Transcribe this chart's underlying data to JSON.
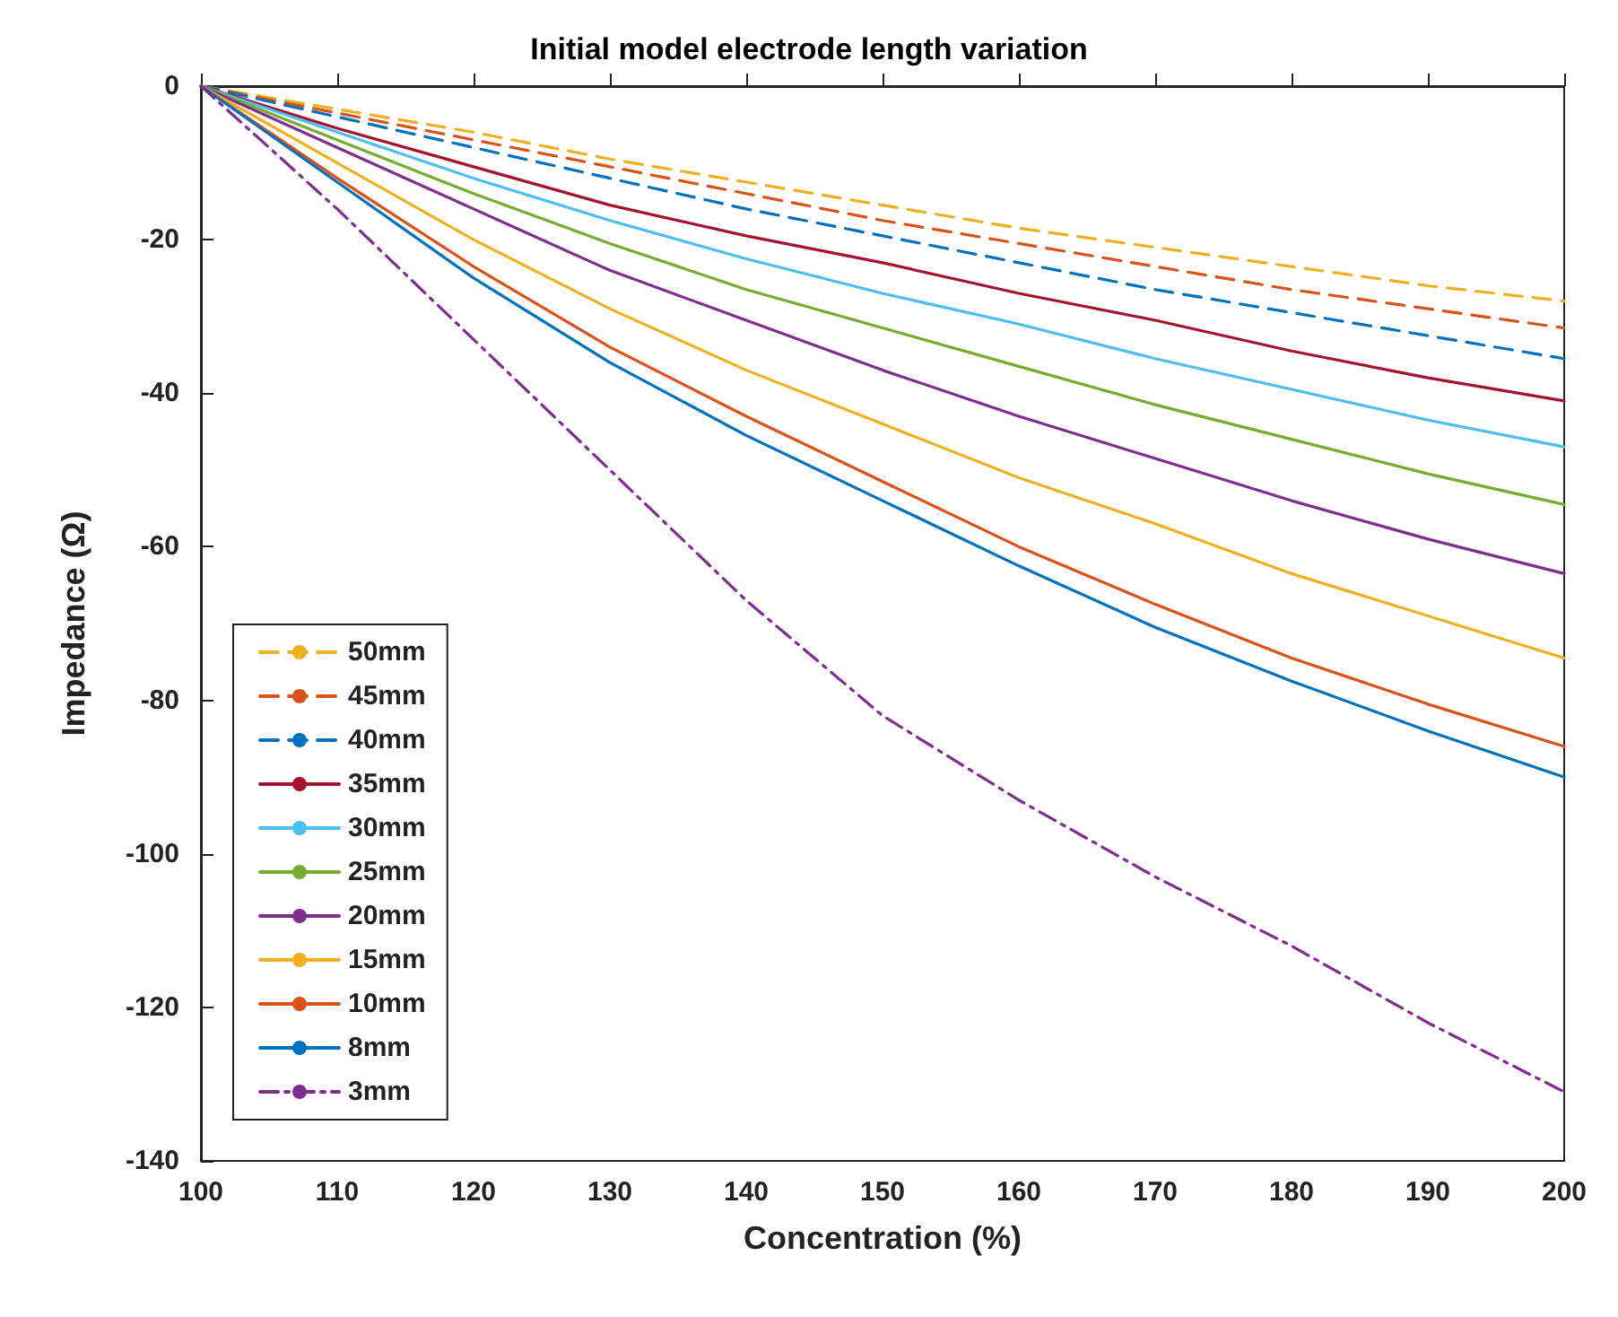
{
  "chart_data": {
    "type": "line",
    "title": "Initial model electrode length variation",
    "xlabel": "Concentration (%)",
    "ylabel": "Impedance (Ω)",
    "x": [
      100,
      110,
      120,
      130,
      140,
      150,
      160,
      170,
      180,
      190,
      200
    ],
    "xlim": [
      100,
      200
    ],
    "xticks": [
      100,
      110,
      120,
      130,
      140,
      150,
      160,
      170,
      180,
      190,
      200
    ],
    "ylim": [
      -140,
      0
    ],
    "yticks": [
      -140,
      -120,
      -100,
      -80,
      -60,
      -40,
      -20,
      0
    ],
    "grid": false,
    "legend": "bottom left",
    "marker": "none",
    "series": [
      {
        "name": "50mm",
        "color": "#edb120",
        "line_style": "dashed",
        "values": [
          0,
          -3,
          -6,
          -9.5,
          -12.5,
          -15.5,
          -18.5,
          -21,
          -23.5,
          -26,
          -28
        ]
      },
      {
        "name": "45mm",
        "color": "#d95319",
        "line_style": "dashed",
        "values": [
          0,
          -3.5,
          -7,
          -10.5,
          -14,
          -17.5,
          -20.5,
          -23.5,
          -26.5,
          -29,
          -31.5
        ]
      },
      {
        "name": "40mm",
        "color": "#0072bd",
        "line_style": "dashed",
        "values": [
          0,
          -4,
          -8,
          -12,
          -16,
          -19.5,
          -23,
          -26.5,
          -29.5,
          -32.5,
          -35.5
        ]
      },
      {
        "name": "35mm",
        "color": "#a2142f",
        "line_style": "solid",
        "values": [
          0,
          -5.5,
          -10.5,
          -15.5,
          -19.5,
          -23,
          -27,
          -30.5,
          -34.5,
          -38,
          -41
        ]
      },
      {
        "name": "30mm",
        "color": "#4dbeee",
        "line_style": "solid",
        "values": [
          0,
          -6,
          -12,
          -17.5,
          -22.5,
          -27,
          -31,
          -35.5,
          -39.5,
          -43.5,
          -47
        ]
      },
      {
        "name": "25mm",
        "color": "#77ac30",
        "line_style": "solid",
        "values": [
          0,
          -7,
          -14,
          -20.5,
          -26.5,
          -31.5,
          -36.5,
          -41.5,
          -46,
          -50.5,
          -54.5
        ]
      },
      {
        "name": "20mm",
        "color": "#7e2f8e",
        "line_style": "solid",
        "values": [
          0,
          -8,
          -16,
          -24,
          -30.5,
          -37,
          -43,
          -48.5,
          -54,
          -59,
          -63.5
        ]
      },
      {
        "name": "15mm",
        "color": "#edb120",
        "line_style": "solid",
        "values": [
          0,
          -10,
          -20,
          -29,
          -37,
          -44,
          -51,
          -57,
          -63.5,
          -69,
          -74.5
        ]
      },
      {
        "name": "10mm",
        "color": "#d95319",
        "line_style": "solid",
        "values": [
          0,
          -12,
          -23.5,
          -34,
          -43,
          -51.5,
          -60,
          -67.5,
          -74.5,
          -80.5,
          -86
        ]
      },
      {
        "name": "8mm",
        "color": "#0072bd",
        "line_style": "solid",
        "values": [
          0,
          -12.5,
          -25,
          -36,
          -45.5,
          -54,
          -62.5,
          -70.5,
          -77.5,
          -84,
          -90
        ]
      },
      {
        "name": "3mm",
        "color": "#7e2f8e",
        "line_style": "dashdot",
        "values": [
          0,
          -16,
          -33,
          -50,
          -67,
          -82,
          -93,
          -103,
          -112,
          -122,
          -131
        ]
      }
    ]
  }
}
